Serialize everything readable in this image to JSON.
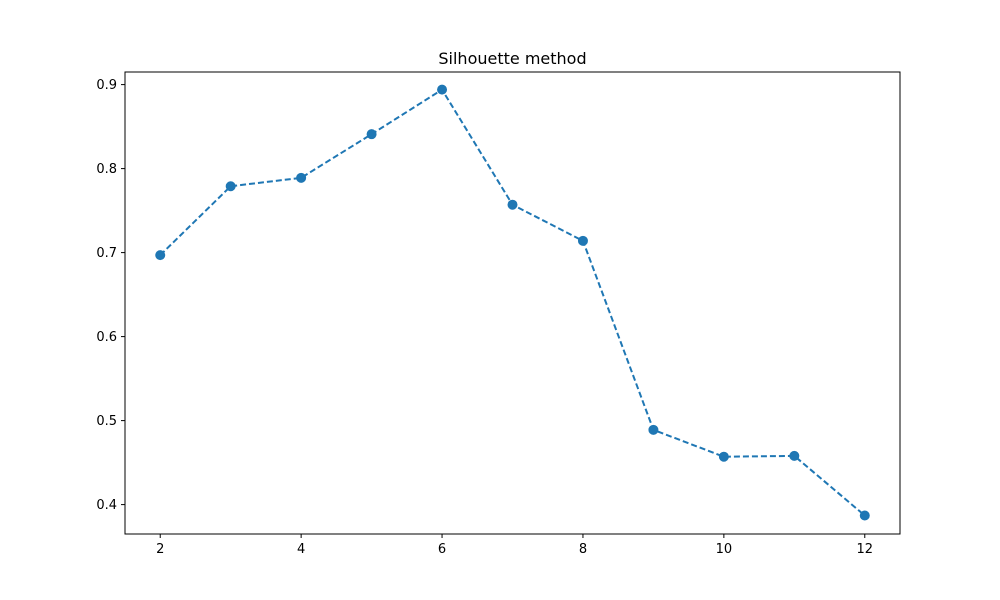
{
  "chart_data": {
    "type": "line",
    "title": "Silhouette method",
    "xlabel": "",
    "ylabel": "",
    "x": [
      2,
      3,
      4,
      5,
      6,
      7,
      8,
      9,
      10,
      11,
      12
    ],
    "series": [
      {
        "values": [
          0.697,
          0.779,
          0.789,
          0.841,
          0.894,
          0.757,
          0.714,
          0.489,
          0.457,
          0.458,
          0.387
        ],
        "color": "#1f77b4",
        "line_style": "dashed",
        "marker": "circle"
      }
    ],
    "xlim": [
      1.5,
      12.5
    ],
    "ylim": [
      0.365,
      0.915
    ],
    "xticks": [
      2,
      4,
      6,
      8,
      10,
      12
    ],
    "yticks": [
      0.4,
      0.5,
      0.6,
      0.7,
      0.8,
      0.9
    ],
    "ytick_labels": [
      "0.4",
      "0.5",
      "0.6",
      "0.7",
      "0.8",
      "0.9"
    ],
    "grid": false,
    "legend": false
  }
}
